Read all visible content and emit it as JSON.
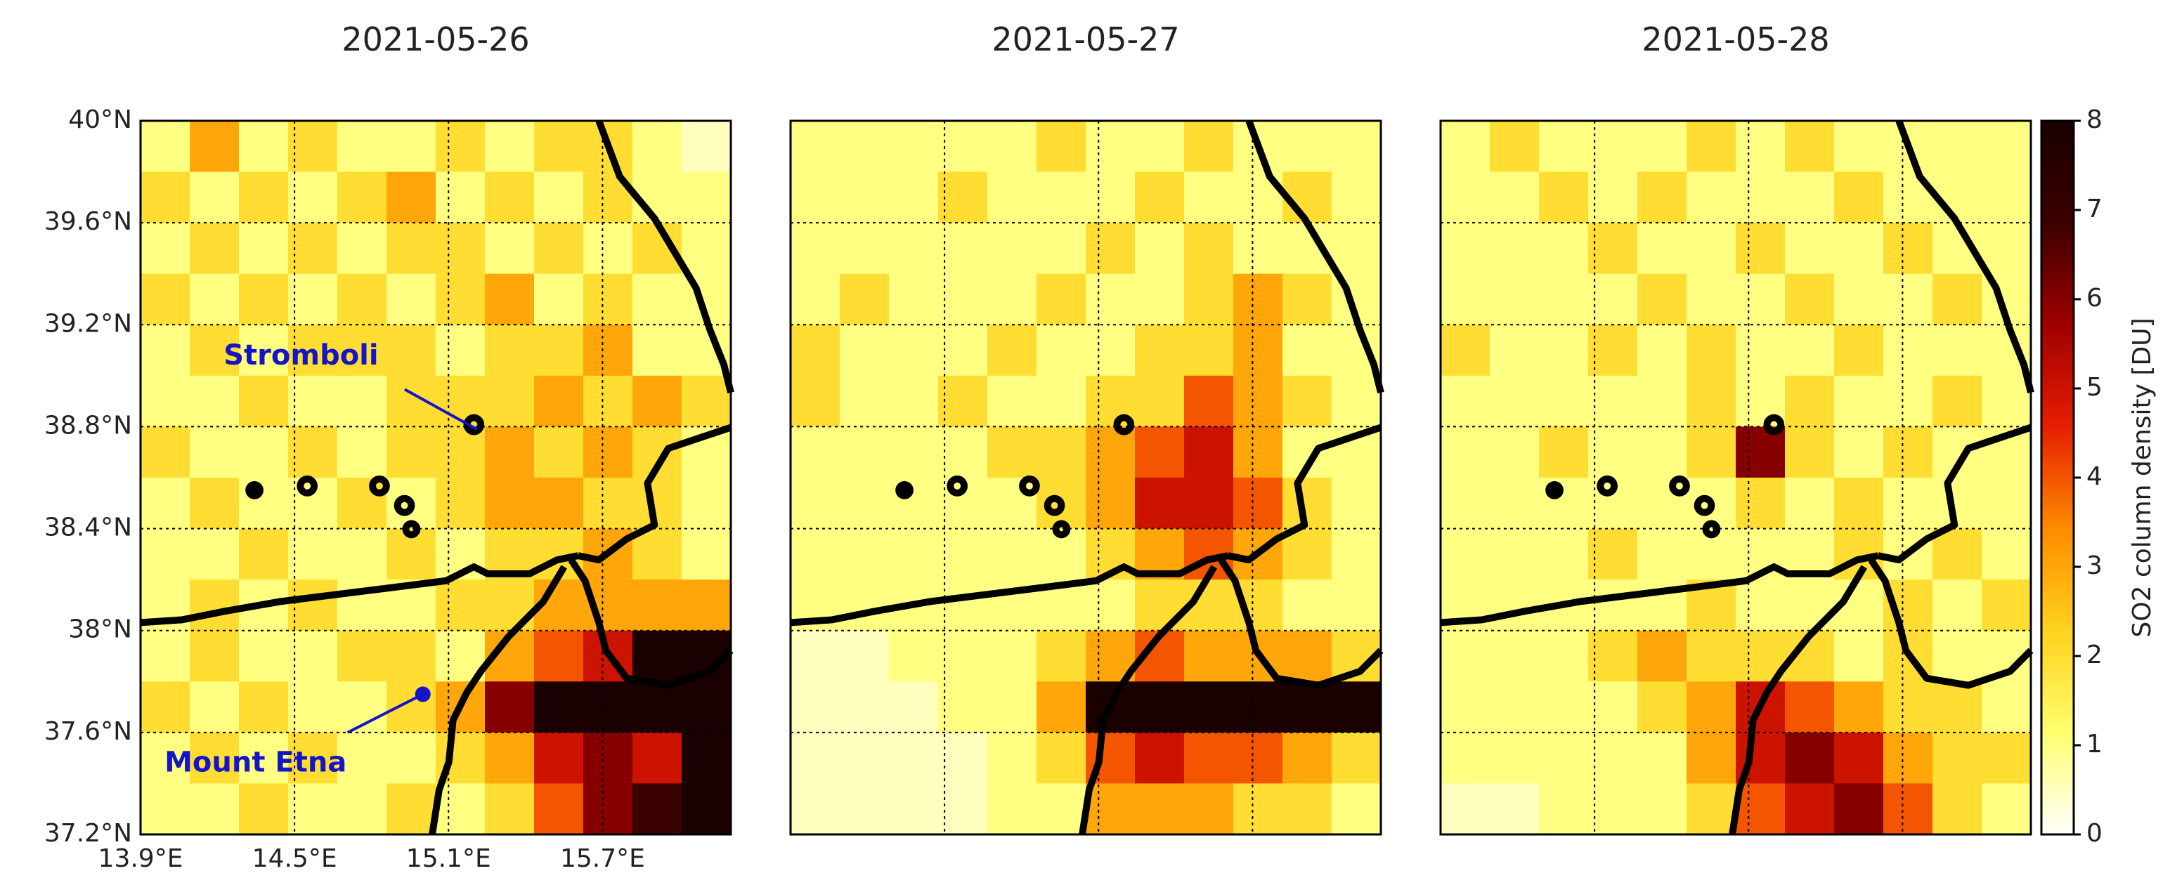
{
  "chart_data": [
    {
      "type": "heatmap",
      "title": "2021-05-26",
      "xlim": [
        13.9,
        16.2
      ],
      "ylim": [
        37.2,
        40
      ],
      "xticks": [
        {
          "value": 13.9,
          "label": "13.9°E"
        },
        {
          "value": 14.5,
          "label": "14.5°E"
        },
        {
          "value": 15.1,
          "label": "15.1°E"
        },
        {
          "value": 15.7,
          "label": "15.7°E"
        }
      ],
      "yticks": [
        {
          "value": 37.2,
          "label": "37.2°N"
        },
        {
          "value": 37.6,
          "label": "37.6°N"
        },
        {
          "value": 38,
          "label": "38°N"
        },
        {
          "value": 38.4,
          "label": "38.4°N"
        },
        {
          "value": 38.8,
          "label": "38.8°N"
        },
        {
          "value": 39.2,
          "label": "39.2°N"
        },
        {
          "value": 39.6,
          "label": "39.6°N"
        },
        {
          "value": 40,
          "label": "40°N"
        }
      ],
      "grid": true,
      "annotations": [
        {
          "text": "Stromboli",
          "x": 15.21,
          "y": 38.79,
          "color": "#1414c8"
        },
        {
          "text": "Mount Etna",
          "x": 15.0,
          "y": 37.75,
          "color": "#1414c8"
        }
      ],
      "values": [
        [
          1,
          3,
          1,
          2,
          1,
          1,
          2,
          1,
          2,
          2,
          1,
          0.5
        ],
        [
          2,
          1,
          2,
          1,
          2,
          3,
          1,
          2,
          1,
          2,
          1,
          1
        ],
        [
          1,
          2,
          1,
          2,
          1,
          2,
          2,
          1,
          2,
          1,
          2,
          1
        ],
        [
          2,
          1,
          2,
          1,
          2,
          1,
          2,
          3,
          1,
          2,
          1,
          1
        ],
        [
          1,
          2,
          1,
          2,
          2,
          2,
          1,
          2,
          2,
          3,
          1,
          1
        ],
        [
          1,
          1,
          2,
          1,
          1,
          2,
          2,
          2,
          3,
          2,
          3,
          2
        ],
        [
          2,
          1,
          1,
          2,
          1,
          2,
          2,
          3,
          2,
          3,
          2,
          1
        ],
        [
          1,
          2,
          1,
          1,
          2,
          1,
          2,
          3,
          3,
          2,
          2,
          1
        ],
        [
          1,
          1,
          2,
          1,
          1,
          2,
          1,
          2,
          2,
          3,
          2,
          1
        ],
        [
          1,
          2,
          1,
          2,
          1,
          1,
          2,
          2,
          3,
          3,
          3,
          3
        ],
        [
          1,
          2,
          1,
          1,
          2,
          2,
          1,
          3,
          4,
          5,
          8,
          8
        ],
        [
          2,
          1,
          2,
          1,
          1,
          2,
          3,
          6,
          8,
          8,
          8,
          8
        ],
        [
          1,
          2,
          1,
          2,
          1,
          1,
          2,
          3,
          5,
          6,
          5,
          8
        ],
        [
          1,
          1,
          2,
          1,
          1,
          2,
          1,
          2,
          4,
          6,
          7,
          8
        ]
      ]
    },
    {
      "type": "heatmap",
      "title": "2021-05-27",
      "xlim": [
        13.9,
        16.2
      ],
      "ylim": [
        37.2,
        40
      ],
      "xticks": [
        13.9,
        14.5,
        15.1,
        15.7
      ],
      "yticks": [
        37.2,
        37.6,
        38,
        38.4,
        38.8,
        39.2,
        39.6,
        40
      ],
      "grid": true,
      "values": [
        [
          1,
          1,
          1,
          1,
          1,
          2,
          1,
          1,
          2,
          1,
          1,
          1
        ],
        [
          1,
          1,
          1,
          2,
          1,
          1,
          1,
          2,
          1,
          1,
          2,
          1
        ],
        [
          1,
          1,
          1,
          1,
          1,
          1,
          2,
          1,
          2,
          1,
          1,
          1
        ],
        [
          1,
          2,
          1,
          1,
          1,
          2,
          1,
          1,
          2,
          3,
          2,
          1
        ],
        [
          2,
          1,
          1,
          1,
          2,
          1,
          1,
          2,
          2,
          3,
          1,
          1
        ],
        [
          2,
          1,
          1,
          2,
          1,
          1,
          2,
          2,
          4,
          3,
          2,
          1
        ],
        [
          1,
          1,
          1,
          1,
          2,
          2,
          3,
          4,
          5,
          3,
          1,
          1
        ],
        [
          1,
          1,
          1,
          1,
          1,
          2,
          3,
          5,
          5,
          4,
          2,
          1
        ],
        [
          1,
          1,
          1,
          1,
          1,
          1,
          2,
          3,
          4,
          3,
          2,
          1
        ],
        [
          1,
          1,
          1,
          1,
          1,
          1,
          1,
          2,
          2,
          2,
          1,
          1
        ],
        [
          0.5,
          0.5,
          1,
          1,
          1,
          2,
          3,
          4,
          3,
          3,
          3,
          2
        ],
        [
          0.5,
          0.5,
          0.5,
          1,
          1,
          3,
          8,
          8,
          8,
          8,
          8,
          8
        ],
        [
          0.5,
          0.5,
          0.5,
          0.5,
          1,
          2,
          4,
          5,
          4,
          4,
          3,
          2
        ],
        [
          0.5,
          0.5,
          0.5,
          0.5,
          1,
          1,
          3,
          3,
          3,
          2,
          2,
          1
        ]
      ]
    },
    {
      "type": "heatmap",
      "title": "2021-05-28",
      "xlim": [
        13.9,
        16.2
      ],
      "ylim": [
        37.2,
        40
      ],
      "xticks": [
        13.9,
        14.5,
        15.1,
        15.7
      ],
      "yticks": [
        37.2,
        37.6,
        38,
        38.4,
        38.8,
        39.2,
        39.6,
        40
      ],
      "grid": true,
      "values": [
        [
          1,
          2,
          1,
          1,
          1,
          2,
          1,
          2,
          1,
          1,
          1,
          1
        ],
        [
          1,
          1,
          2,
          1,
          2,
          1,
          1,
          1,
          2,
          1,
          1,
          1
        ],
        [
          1,
          1,
          1,
          2,
          1,
          1,
          2,
          1,
          1,
          2,
          1,
          1
        ],
        [
          1,
          1,
          1,
          1,
          2,
          1,
          1,
          2,
          1,
          1,
          2,
          1
        ],
        [
          2,
          1,
          1,
          2,
          1,
          2,
          1,
          1,
          2,
          1,
          1,
          1
        ],
        [
          1,
          1,
          1,
          1,
          1,
          2,
          1,
          2,
          1,
          1,
          2,
          1
        ],
        [
          1,
          1,
          2,
          1,
          1,
          2,
          6,
          2,
          1,
          2,
          1,
          1
        ],
        [
          1,
          1,
          1,
          1,
          1,
          1,
          2,
          1,
          2,
          1,
          1,
          1
        ],
        [
          1,
          1,
          1,
          2,
          1,
          1,
          1,
          1,
          2,
          1,
          2,
          1
        ],
        [
          1,
          1,
          1,
          1,
          1,
          2,
          1,
          1,
          1,
          2,
          1,
          2
        ],
        [
          1,
          1,
          1,
          2,
          3,
          2,
          2,
          2,
          1,
          2,
          1,
          1
        ],
        [
          1,
          1,
          1,
          1,
          2,
          3,
          5,
          4,
          3,
          2,
          2,
          1
        ],
        [
          1,
          1,
          1,
          1,
          1,
          3,
          5,
          6,
          5,
          3,
          2,
          2
        ],
        [
          0.5,
          0.5,
          1,
          1,
          1,
          2,
          4,
          5,
          6,
          4,
          2,
          1
        ]
      ],
      "colorbar": {
        "label": "SO2 column density [DU]",
        "zlim": [
          0,
          8
        ],
        "zticks": [
          0,
          1,
          2,
          3,
          4,
          5,
          6,
          7,
          8
        ],
        "colormap": [
          "#ffffff",
          "#ffff70",
          "#ffd21e",
          "#ff8c00",
          "#e61e00",
          "#a00000",
          "#3c0000",
          "#1a0000"
        ]
      }
    }
  ]
}
